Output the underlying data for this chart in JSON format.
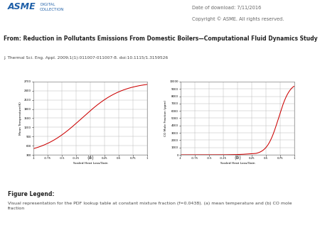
{
  "title_line1": "From: Reduction in Pollutants Emissions From Domestic Boilers—Computational Fluid Dynamics Study",
  "journal_ref": "J. Thermal Sci. Eng. Appl. 2009;1(1):011007-011007-8. doi:10.1115/1.3159526",
  "date_text": "Date of download: 7/11/2016",
  "copyright_text": "Copyright © ASME. All rights reserved.",
  "figure_legend_title": "Figure Legend:",
  "figure_legend_text": "Visual representation for the PDF lookup table at constant mixture fraction (f=0.0438). (a) mean temperature and (b) CO mole\nfraction",
  "xlabel": "Scaled Heat Loss/Gain",
  "ylabel_a": "Mean Temperature(K)",
  "ylabel_b": "CO Mole Fraction (ppm)",
  "label_a": "(a)",
  "label_b": "(b)",
  "xlim": [
    -1,
    1
  ],
  "xticks": [
    -1,
    -0.75,
    -0.5,
    -0.25,
    0,
    0.25,
    0.5,
    0.75,
    1
  ],
  "xticklabels": [
    "-1",
    "-0.75",
    "-0.5",
    "-0.25",
    "0",
    "0.25",
    "0.5",
    "0.75",
    "1"
  ],
  "ylim_a": [
    300,
    2700
  ],
  "yticks_a": [
    300,
    600,
    900,
    1200,
    1500,
    1800,
    2100,
    2400,
    2700
  ],
  "ylim_b": [
    0,
    10000
  ],
  "yticks_b": [
    0,
    1000,
    2000,
    3000,
    4000,
    5000,
    6000,
    7000,
    8000,
    9000,
    10000
  ],
  "curve_color": "#cc0000",
  "bg_white": "#ffffff",
  "bg_gray": "#e8e5e0",
  "bg_light": "#f2eeea",
  "grid_color": "#bbbbbb",
  "text_dark": "#222222",
  "text_mid": "#444444",
  "text_light": "#666666",
  "asme_blue": "#1e5fa8",
  "asme_logo_text": "ASME",
  "digital_text": "DIGITAL\nCOLLECTION"
}
